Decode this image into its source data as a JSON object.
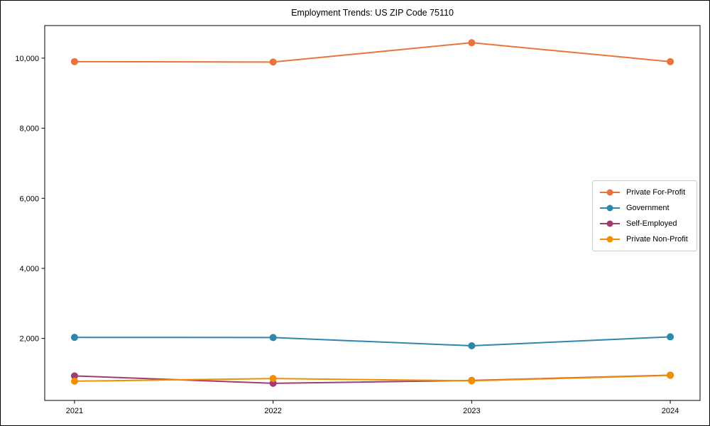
{
  "chart": {
    "title": "Employment Trends: US ZIP Code 75110"
  },
  "chart_data": {
    "type": "line",
    "title": "Employment Trends: US ZIP Code 75110",
    "xlabel": "",
    "ylabel": "",
    "x": [
      2021,
      2022,
      2023,
      2024
    ],
    "x_tick_labels": [
      "2021",
      "2022",
      "2023",
      "2024"
    ],
    "y_ticks": [
      2000,
      4000,
      6000,
      8000,
      10000
    ],
    "y_tick_labels": [
      "2,000",
      "4,000",
      "6,000",
      "8,000",
      "10,000"
    ],
    "xlim": [
      2020.85,
      2024.15
    ],
    "ylim": [
      230,
      10930
    ],
    "grid": false,
    "legend_position": "center right",
    "series": [
      {
        "name": "Private For-Profit",
        "color": "#E8743B",
        "values": [
          9900,
          9890,
          10440,
          9900
        ]
      },
      {
        "name": "Government",
        "color": "#2E86AB",
        "values": [
          2030,
          2025,
          1790,
          2045
        ]
      },
      {
        "name": "Self-Employed",
        "color": "#A23B72",
        "values": [
          930,
          720,
          800,
          950
        ]
      },
      {
        "name": "Private Non-Profit",
        "color": "#F18F01",
        "values": [
          780,
          855,
          790,
          945
        ]
      }
    ]
  }
}
